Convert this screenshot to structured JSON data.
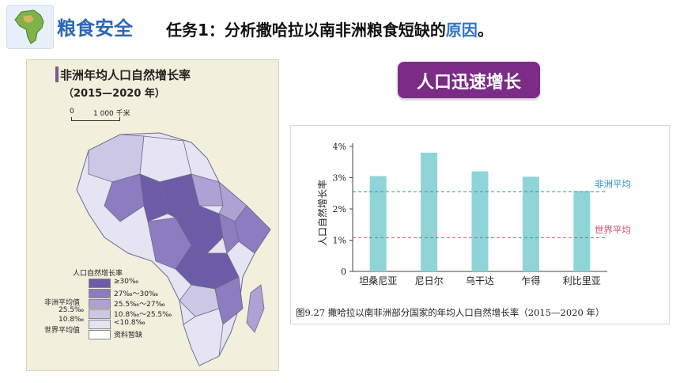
{
  "header": {
    "section_title": "粮食安全",
    "task_prefix": "任务1：分析撒哈拉以南非洲粮食短缺的",
    "task_highlight": "原因",
    "task_suffix": "。"
  },
  "map": {
    "title": "非洲年均人口自然增长率",
    "subtitle": "（2015—2020 年）",
    "scale_left": "0",
    "scale_right": "1 000 千米",
    "legend_title": "人口自然增长率",
    "legend": [
      {
        "label": "≥30‰",
        "color": "#6e5ba8"
      },
      {
        "label": "27‰～30‰",
        "color": "#8d7dc0"
      },
      {
        "label": "25.5‰～27‰",
        "color": "#ada2d3"
      },
      {
        "label": "10.8‰～25.5‰",
        "color": "#cdc7e6"
      },
      {
        "label": "<10.8‰",
        "color": "#e6e3f3"
      },
      {
        "label": "资料暂缺",
        "color": "#ffffff"
      }
    ],
    "side_labels": {
      "africa_avg": "非洲平均值",
      "africa_avg_val": "25.5‰",
      "world_avg_val": "10.8‰",
      "world_avg": "世界平均值"
    }
  },
  "badge": {
    "label": "人口迅速增长"
  },
  "chart_data": {
    "type": "bar",
    "categories": [
      "坦桑尼亚",
      "尼日尔",
      "乌干达",
      "乍得",
      "利比里亚"
    ],
    "values": [
      3.05,
      3.8,
      3.2,
      3.03,
      2.57
    ],
    "ylabel": "人口自然增长率",
    "ylim": [
      0,
      4
    ],
    "yticks": [
      "0",
      "1%",
      "2%",
      "3%",
      "4%"
    ],
    "bar_color": "#8fd5d8",
    "reference_lines": [
      {
        "name": "非洲平均",
        "value": 2.55,
        "color": "#2a90c8"
      },
      {
        "name": "世界平均",
        "value": 1.08,
        "color": "#d94a6b"
      }
    ],
    "caption": "图9.27   撒哈拉以南非洲部分国家的年均人口自然增长率（2015—2020 年）"
  }
}
